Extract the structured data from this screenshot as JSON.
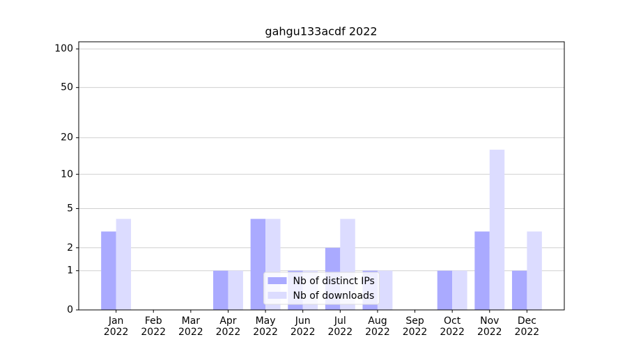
{
  "chart_data": {
    "type": "bar",
    "title": "gahgu133acdf 2022",
    "categories": [
      "Jan\n2022",
      "Feb\n2022",
      "Mar\n2022",
      "Apr\n2022",
      "May\n2022",
      "Jun\n2022",
      "Jul\n2022",
      "Aug\n2022",
      "Sep\n2022",
      "Oct\n2022",
      "Nov\n2022",
      "Dec\n2022"
    ],
    "series": [
      {
        "name": "Nb of distinct IPs",
        "color": "#aaaaff",
        "values": [
          3,
          0,
          0,
          1,
          4,
          1,
          2,
          1,
          0,
          1,
          3,
          1
        ]
      },
      {
        "name": "Nb of downloads",
        "color": "#dcdcff",
        "values": [
          4,
          0,
          0,
          1,
          4,
          1,
          4,
          1,
          0,
          1,
          16,
          3
        ]
      }
    ],
    "yscale": "log1p",
    "ylim": [
      0,
      113.5
    ],
    "yticks": [
      0,
      1,
      2,
      5,
      10,
      20,
      50,
      100
    ],
    "grid": true,
    "legend": "lower center"
  }
}
